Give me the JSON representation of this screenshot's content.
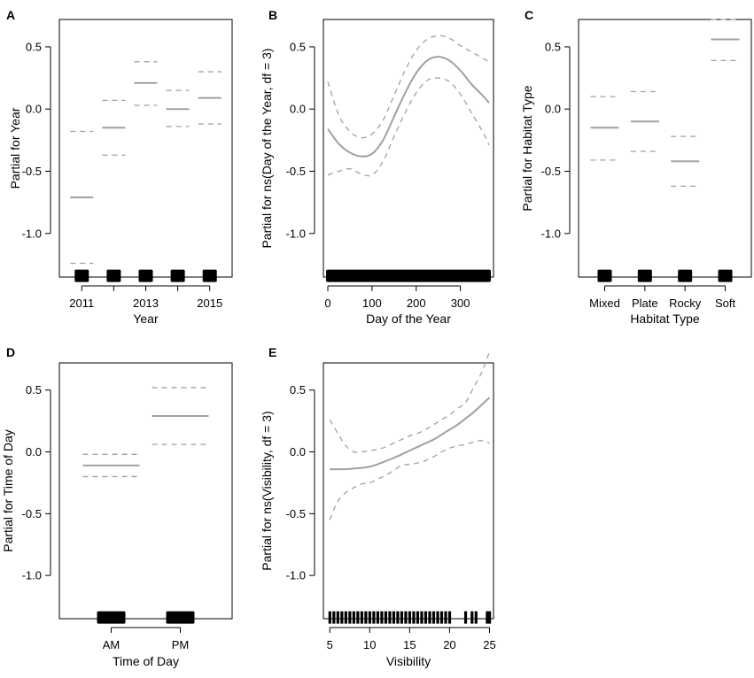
{
  "chart_data": [
    {
      "panel": "A",
      "type": "line",
      "ylabel": "Partial for Year",
      "xlabel": "Year",
      "ylim": [
        -1.35,
        0.72
      ],
      "yticks": [
        0.5,
        0.0,
        -0.5,
        -1.0
      ],
      "ytick_labels": [
        "0.5",
        "0.0",
        "-0.5",
        "-1.0"
      ],
      "xlim": [
        2010.3,
        2015.7
      ],
      "xticks": [
        2011,
        2012,
        2013,
        2014,
        2015
      ],
      "xtick_labels": [
        "2011",
        "",
        "2013",
        "",
        "2015"
      ],
      "factor_levels": [
        {
          "x": 2011,
          "estimate": -0.71,
          "lower": -1.24,
          "upper": -0.18
        },
        {
          "x": 2012,
          "estimate": -0.15,
          "lower": -0.37,
          "upper": 0.07
        },
        {
          "x": 2013,
          "estimate": 0.21,
          "lower": 0.03,
          "upper": 0.38
        },
        {
          "x": 2014,
          "estimate": 0.0,
          "lower": -0.14,
          "upper": 0.15
        },
        {
          "x": 2015,
          "estimate": 0.09,
          "lower": -0.12,
          "upper": 0.3
        }
      ],
      "rug": [
        2011,
        2012,
        2013,
        2014,
        2015
      ]
    },
    {
      "panel": "B",
      "type": "line",
      "ylabel": "Partial for ns(Day of the Year, df = 3)",
      "xlabel": "Day of the Year",
      "ylim": [
        -1.35,
        0.72
      ],
      "yticks": [
        0.5,
        0.0,
        -0.5,
        -1.0
      ],
      "ytick_labels": [
        "0.5",
        "0.0",
        "-0.5",
        "-1.0"
      ],
      "xlim": [
        -10,
        375
      ],
      "xticks": [
        0,
        100,
        200,
        300
      ],
      "xtick_labels": [
        "0",
        "100",
        "200",
        "300"
      ],
      "x": [
        0,
        25,
        50,
        75,
        100,
        125,
        150,
        175,
        200,
        225,
        250,
        275,
        300,
        325,
        350,
        365
      ],
      "fit": [
        -0.16,
        -0.28,
        -0.35,
        -0.38,
        -0.36,
        -0.25,
        -0.06,
        0.13,
        0.29,
        0.39,
        0.42,
        0.39,
        0.31,
        0.2,
        0.11,
        0.05
      ],
      "upper": [
        0.22,
        -0.05,
        -0.18,
        -0.23,
        -0.2,
        -0.09,
        0.11,
        0.31,
        0.47,
        0.56,
        0.59,
        0.57,
        0.51,
        0.46,
        0.41,
        0.38
      ],
      "lower": [
        -0.53,
        -0.5,
        -0.48,
        -0.52,
        -0.53,
        -0.42,
        -0.22,
        -0.03,
        0.13,
        0.23,
        0.25,
        0.22,
        0.12,
        -0.03,
        -0.18,
        -0.29
      ],
      "rug": [
        0,
        365
      ]
    },
    {
      "panel": "C",
      "type": "line",
      "ylabel": "Partial for Habitat Type",
      "xlabel": "Habitat Type",
      "ylim": [
        -1.35,
        0.72
      ],
      "yticks": [
        0.5,
        0.0,
        -0.5,
        -1.0
      ],
      "ytick_labels": [
        "0.5",
        "0.0",
        "-0.5",
        "-1.0"
      ],
      "xlim": [
        0.35,
        4.65
      ],
      "xticks": [
        1,
        2,
        3,
        4
      ],
      "xtick_labels": [
        "Mixed",
        "Plate",
        "Rocky",
        "Soft"
      ],
      "factor_levels": [
        {
          "x": 1,
          "estimate": -0.15,
          "lower": -0.41,
          "upper": 0.1
        },
        {
          "x": 2,
          "estimate": -0.1,
          "lower": -0.34,
          "upper": 0.14
        },
        {
          "x": 3,
          "estimate": -0.42,
          "lower": -0.62,
          "upper": -0.22
        },
        {
          "x": 4,
          "estimate": 0.56,
          "lower": 0.39,
          "upper": 0.72
        }
      ],
      "rug": [
        1,
        2,
        3,
        4
      ]
    },
    {
      "panel": "D",
      "type": "line",
      "ylabel": "Partial for Time of Day",
      "xlabel": "Time of Day",
      "ylim": [
        -1.35,
        0.72
      ],
      "yticks": [
        0.5,
        0.0,
        -0.5,
        -1.0
      ],
      "ytick_labels": [
        "0.5",
        "0.0",
        "-0.5",
        "-1.0"
      ],
      "xlim": [
        0.25,
        2.75
      ],
      "xticks": [
        1,
        2
      ],
      "xtick_labels": [
        "AM",
        "PM"
      ],
      "factor_levels": [
        {
          "x": 1,
          "estimate": -0.11,
          "lower": -0.2,
          "upper": -0.02
        },
        {
          "x": 2,
          "estimate": 0.29,
          "lower": 0.06,
          "upper": 0.52
        }
      ],
      "rug": [
        1,
        2
      ]
    },
    {
      "panel": "E",
      "type": "line",
      "ylabel": "Partial for ns(Visibility, df = 3)",
      "xlabel": "Visibility",
      "ylim": [
        -1.35,
        0.72
      ],
      "yticks": [
        0.5,
        0.0,
        -0.5,
        -1.0
      ],
      "ytick_labels": [
        "0.5",
        "0.0",
        "-0.5",
        "-1.0"
      ],
      "xlim": [
        4.2,
        25.5
      ],
      "xticks": [
        5,
        10,
        15,
        20,
        25
      ],
      "xtick_labels": [
        "5",
        "10",
        "15",
        "20",
        "25"
      ],
      "x": [
        5,
        6,
        7,
        8,
        9,
        10,
        11,
        12,
        13,
        14,
        15,
        16,
        17,
        18,
        19,
        20,
        21,
        22,
        23,
        24,
        25
      ],
      "fit": [
        -0.14,
        -0.14,
        -0.14,
        -0.135,
        -0.13,
        -0.12,
        -0.1,
        -0.075,
        -0.05,
        -0.02,
        0.01,
        0.04,
        0.07,
        0.1,
        0.14,
        0.18,
        0.22,
        0.27,
        0.32,
        0.38,
        0.44
      ],
      "upper": [
        0.26,
        0.15,
        0.05,
        0.0,
        0.0,
        0.01,
        0.02,
        0.04,
        0.07,
        0.1,
        0.13,
        0.15,
        0.18,
        0.22,
        0.26,
        0.3,
        0.35,
        0.4,
        0.52,
        0.64,
        0.81
      ],
      "lower": [
        -0.55,
        -0.4,
        -0.33,
        -0.29,
        -0.26,
        -0.25,
        -0.22,
        -0.19,
        -0.15,
        -0.11,
        -0.1,
        -0.09,
        -0.07,
        -0.04,
        0.0,
        0.03,
        0.05,
        0.06,
        0.08,
        0.09,
        0.07
      ],
      "rug": [
        5,
        5.5,
        6,
        6.5,
        7,
        7.5,
        8,
        8.5,
        9,
        9.5,
        10,
        10.5,
        11,
        11.5,
        12,
        12.5,
        13,
        13.5,
        14,
        14.5,
        15,
        15.5,
        16,
        16.5,
        17,
        17.5,
        18,
        18.5,
        19,
        19.5,
        20,
        22,
        22.8,
        23.3,
        24.7,
        25
      ]
    }
  ]
}
